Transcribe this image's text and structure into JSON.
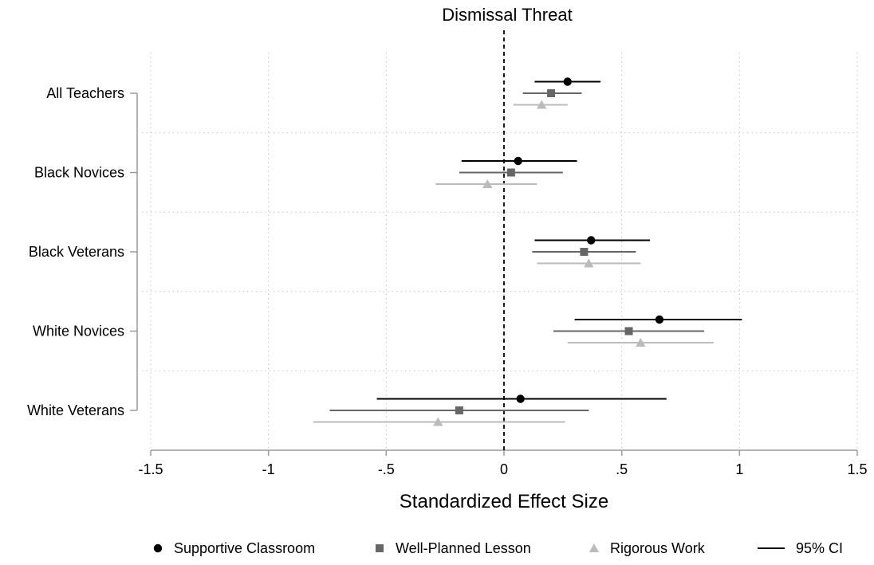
{
  "chart_data": {
    "type": "forest",
    "title": "Dismissal Threat",
    "xlabel": "Standardized Effect Size",
    "ylabel": "",
    "xlim": [
      -1.5,
      1.5
    ],
    "x_ticks": [
      -1.5,
      -1,
      -0.5,
      0,
      0.5,
      1,
      1.5
    ],
    "x_tick_labels": [
      "-1.5",
      "-1",
      "-.5",
      "0",
      ".5",
      "1",
      "1.5"
    ],
    "reference_line": 0,
    "grid": true,
    "legend_position": "bottom",
    "categories": [
      "All Teachers",
      "Black Novices",
      "Black Veterans",
      "White Novices",
      "White Veterans"
    ],
    "series": [
      {
        "name": "Supportive Classroom",
        "marker": "circle",
        "color": "#000000",
        "points": [
          {
            "estimate": 0.27,
            "ci": [
              0.13,
              0.41
            ]
          },
          {
            "estimate": 0.06,
            "ci": [
              -0.18,
              0.31
            ]
          },
          {
            "estimate": 0.37,
            "ci": [
              0.13,
              0.62
            ]
          },
          {
            "estimate": 0.66,
            "ci": [
              0.3,
              1.01
            ]
          },
          {
            "estimate": 0.07,
            "ci": [
              -0.54,
              0.69
            ]
          }
        ]
      },
      {
        "name": "Well-Planned Lesson",
        "marker": "square",
        "color": "#666666",
        "points": [
          {
            "estimate": 0.2,
            "ci": [
              0.08,
              0.33
            ]
          },
          {
            "estimate": 0.03,
            "ci": [
              -0.19,
              0.25
            ]
          },
          {
            "estimate": 0.34,
            "ci": [
              0.12,
              0.56
            ]
          },
          {
            "estimate": 0.53,
            "ci": [
              0.21,
              0.85
            ]
          },
          {
            "estimate": -0.19,
            "ci": [
              -0.74,
              0.36
            ]
          }
        ]
      },
      {
        "name": "Rigorous Work",
        "marker": "triangle",
        "color": "#bbbbbb",
        "points": [
          {
            "estimate": 0.16,
            "ci": [
              0.04,
              0.27
            ]
          },
          {
            "estimate": -0.07,
            "ci": [
              -0.29,
              0.14
            ]
          },
          {
            "estimate": 0.36,
            "ci": [
              0.14,
              0.58
            ]
          },
          {
            "estimate": 0.58,
            "ci": [
              0.27,
              0.89
            ]
          },
          {
            "estimate": -0.28,
            "ci": [
              -0.81,
              0.26
            ]
          }
        ]
      }
    ],
    "ci_legend_label": "95% CI"
  }
}
